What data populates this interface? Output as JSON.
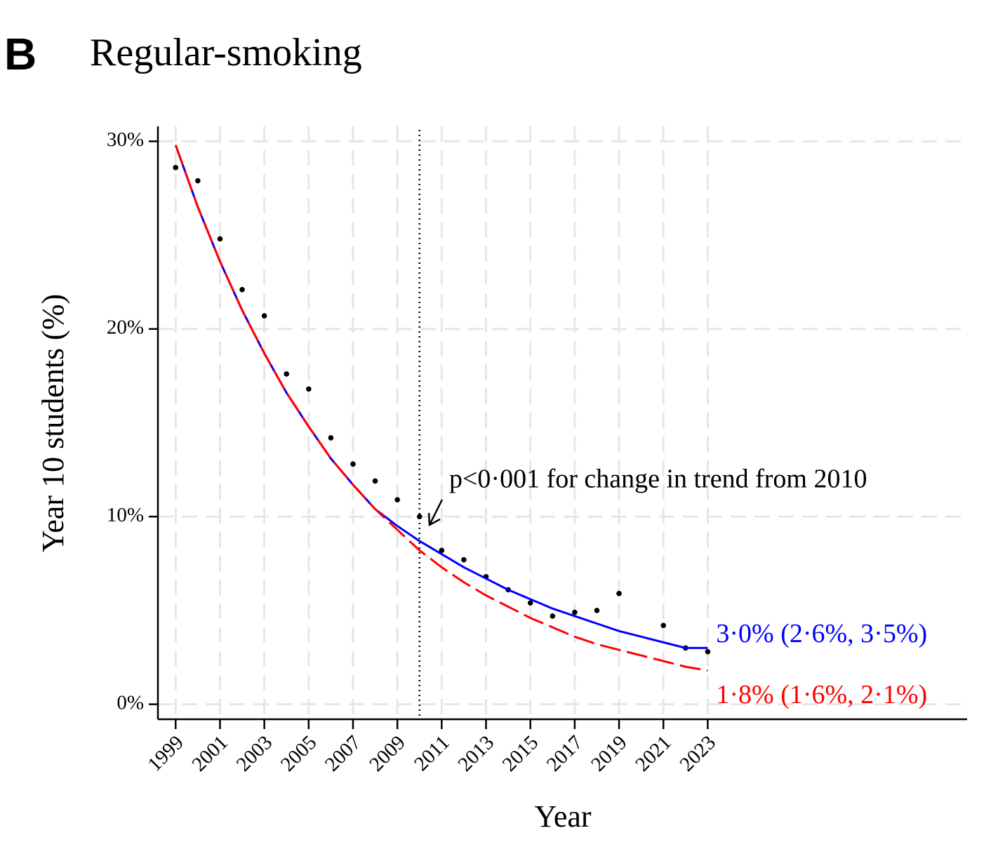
{
  "chart_data": {
    "type": "scatter",
    "panel_label": "B",
    "title": "Regular-smoking",
    "x_label": "Year",
    "y_label": "Year 10 students (%)",
    "xlim": [
      1998.2,
      2034.7
    ],
    "ylim": [
      -0.8,
      30.8
    ],
    "xticks": [
      1999,
      2001,
      2003,
      2005,
      2007,
      2009,
      2011,
      2013,
      2015,
      2017,
      2019,
      2021,
      2023
    ],
    "yticks": [
      {
        "value": 0,
        "label": "0%"
      },
      {
        "value": 10,
        "label": "10%"
      },
      {
        "value": 20,
        "label": "20%"
      },
      {
        "value": 30,
        "label": "30%"
      }
    ],
    "grid": true,
    "vline": 2010,
    "annotation": "p<0·001 for change in trend from 2010",
    "x": [
      1999,
      2000,
      2001,
      2002,
      2003,
      2004,
      2005,
      2006,
      2007,
      2008,
      2009,
      2010,
      2011,
      2012,
      2013,
      2014,
      2015,
      2016,
      2017,
      2018,
      2019,
      2020,
      2021,
      2022,
      2023
    ],
    "series": [
      {
        "style": "points",
        "color": "#000000",
        "values": [
          28.6,
          27.9,
          24.8,
          22.1,
          20.7,
          17.6,
          16.8,
          14.2,
          12.8,
          11.9,
          10.9,
          10.0,
          8.2,
          7.7,
          6.8,
          6.1,
          5.4,
          4.7,
          4.9,
          5.0,
          5.9,
          null,
          4.2,
          3.0,
          2.8
        ]
      },
      {
        "style": "solid",
        "color": "#0000ff",
        "values": [
          29.8,
          26.5,
          23.6,
          21.0,
          18.7,
          16.6,
          14.8,
          13.1,
          11.7,
          10.4,
          9.5,
          8.7,
          8.0,
          7.3,
          6.7,
          6.1,
          5.6,
          5.1,
          4.7,
          4.3,
          3.9,
          3.6,
          3.3,
          3.0,
          3.0
        ],
        "end_label": "3·0% (2·6%, 3·5%)"
      },
      {
        "style": "dashed",
        "color": "#ff0000",
        "values": [
          29.8,
          26.5,
          23.6,
          21.0,
          18.7,
          16.6,
          14.8,
          13.1,
          11.7,
          10.4,
          9.3,
          8.2,
          7.3,
          6.5,
          5.8,
          5.2,
          4.6,
          4.1,
          3.6,
          3.2,
          2.9,
          2.6,
          2.3,
          2.0,
          1.8
        ],
        "end_label": "1·8% (1·6%, 2·1%)"
      }
    ]
  }
}
